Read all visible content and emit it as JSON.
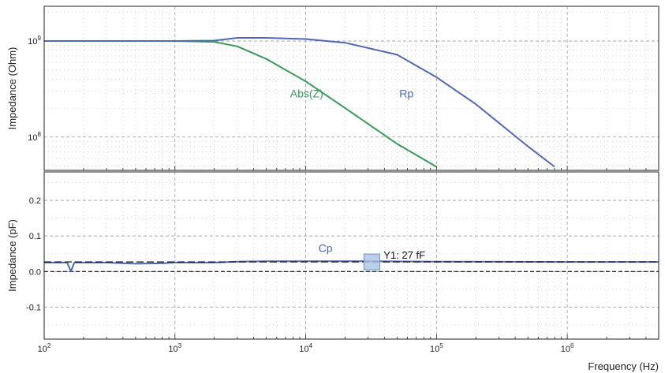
{
  "chart_data": [
    {
      "type": "line",
      "title": "",
      "ylabel": "Impedance (Ohm)",
      "xlabel": "",
      "xscale": "log",
      "yscale": "log",
      "xlim": [
        100,
        5000000
      ],
      "ylim": [
        45000000,
        2300000000
      ],
      "x_ticks": [
        "10^2",
        "10^3",
        "10^4",
        "10^5",
        "10^6"
      ],
      "y_ticks": [
        "10^9",
        "10^8"
      ],
      "grid": true,
      "series": [
        {
          "name": "Abs(Z)",
          "color": "#3a9a5a",
          "x": [
            100,
            1000,
            2000,
            3000,
            5000,
            10000,
            20000,
            50000,
            100000
          ],
          "y": [
            1000000000,
            1000000000,
            980000000,
            880000000,
            650000000,
            380000000,
            200000000,
            85000000,
            49000000
          ]
        },
        {
          "name": "Rp",
          "color": "#5068b0",
          "x": [
            100,
            1000,
            2000,
            3000,
            5000,
            10000,
            20000,
            50000,
            100000,
            200000,
            500000,
            800000
          ],
          "y": [
            1000000000,
            1000000000,
            1010000000,
            1080000000,
            1080000000,
            1050000000,
            960000000,
            720000000,
            420000000,
            220000000,
            80000000,
            49000000
          ]
        }
      ]
    },
    {
      "type": "line",
      "title": "",
      "ylabel": "Impedance (pF)",
      "xlabel": "Frequency (Hz)",
      "xscale": "log",
      "xlim": [
        100,
        5000000
      ],
      "ylim": [
        -0.19,
        0.28
      ],
      "x_ticks": [
        "10^2",
        "10^3",
        "10^4",
        "10^5",
        "10^6"
      ],
      "y_ticks": [
        "0.2",
        "0.1",
        "0.0",
        "-0.1"
      ],
      "grid": true,
      "series": [
        {
          "name": "Cp",
          "color": "#5068b0",
          "x": [
            100,
            150,
            160,
            170,
            300,
            500,
            800,
            1000,
            2000,
            3000,
            5000,
            10000,
            30000,
            100000,
            1000000,
            5000000
          ],
          "y": [
            0.025,
            0.025,
            0.0,
            0.025,
            0.025,
            0.022,
            0.023,
            0.025,
            0.025,
            0.028,
            0.029,
            0.029,
            0.029,
            0.028,
            0.027,
            0.027
          ]
        }
      ],
      "reference_line": {
        "y": 0.0,
        "style": "dashed",
        "color": "#111111"
      },
      "cursor": {
        "label": "Y1: 27 fF",
        "y": 0.027,
        "x": 32000
      }
    }
  ]
}
